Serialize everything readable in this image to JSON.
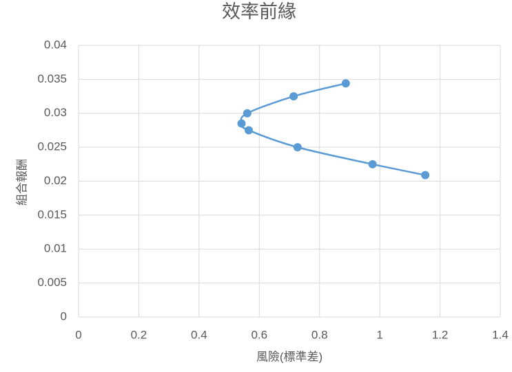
{
  "chart_data": {
    "type": "scatter",
    "title": "效率前緣",
    "x_label": "風險(標準差)",
    "y_label": "組合報酬",
    "x": [
      0.887,
      0.714,
      0.56,
      0.541,
      0.565,
      0.727,
      0.976,
      1.151
    ],
    "values": [
      0.0344,
      0.0325,
      0.03,
      0.0285,
      0.0275,
      0.025,
      0.0225,
      0.0209
    ],
    "color": "#5b9bd5",
    "smooth_line": true,
    "xlim": [
      0,
      1.4
    ],
    "xticks": [
      0,
      0.2,
      0.4,
      0.6,
      0.8,
      1,
      1.2,
      1.4
    ],
    "ylim": [
      0,
      0.04
    ],
    "yticks": [
      0,
      0.005,
      0.01,
      0.015,
      0.02,
      0.025,
      0.03,
      0.035,
      0.04
    ],
    "grid": true
  }
}
